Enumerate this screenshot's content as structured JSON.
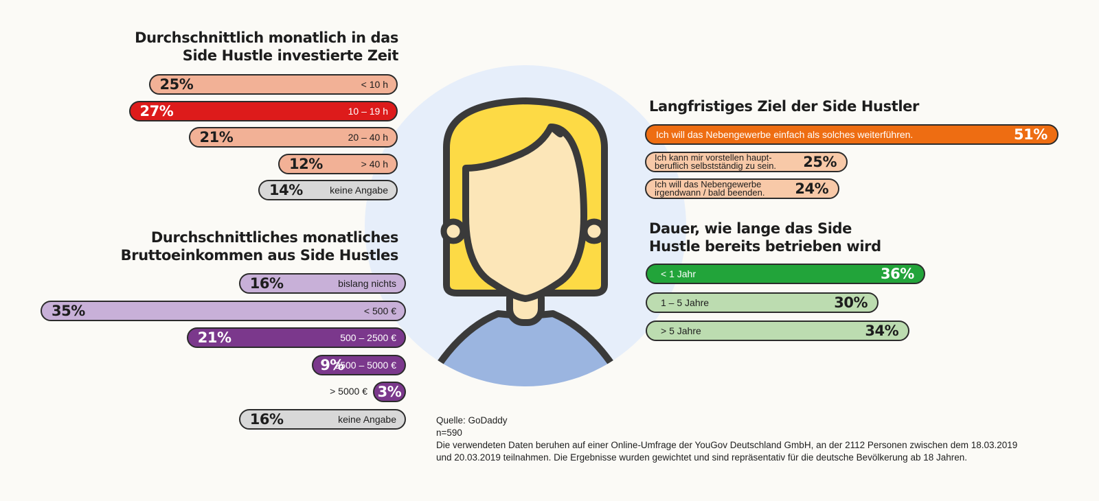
{
  "colors": {
    "background": "#fbfaf6",
    "outline": "#3a3a3a",
    "peach": "#f2b196",
    "red": "#dd1b1b",
    "grey": "#d8d8d8",
    "lavender": "#c8b0d8",
    "purple": "#7b388c",
    "orange": "#ee6d12",
    "light_orange": "#f8c9a8",
    "green": "#22a43a",
    "light_green": "#bcdcb0",
    "circle_bg": "#e6eefa",
    "hair": "#fdda45",
    "skin": "#fce6b8",
    "shirt": "#9bb5e0"
  },
  "chart_data": [
    {
      "type": "bar",
      "title": "Durchschnittlich monatlich in das Side Hustle investierte Zeit",
      "categories": [
        "< 10 h",
        "10 – 19 h",
        "20 – 40 h",
        "> 40 h",
        "keine Angabe"
      ],
      "values": [
        25,
        27,
        21,
        12,
        14
      ],
      "value_labels": [
        "25%",
        "27%",
        "21%",
        "12%",
        "14%"
      ],
      "unit": "%",
      "highlight": "10 – 19 h"
    },
    {
      "type": "bar",
      "title": "Durchschnittliches monatliches Bruttoeinkommen aus Side Hustles",
      "categories": [
        "bislang nichts",
        "< 500 €",
        "500 – 2500 €",
        "2500 – 5000 €",
        "> 5000 €",
        "keine Angabe"
      ],
      "values": [
        16,
        35,
        21,
        9,
        3,
        16
      ],
      "value_labels": [
        "16%",
        "35%",
        "21%",
        "9%",
        "3%",
        "16%"
      ],
      "unit": "%"
    },
    {
      "type": "bar",
      "title": "Langfristiges Ziel der Side Hustler",
      "categories": [
        "Ich will das Nebengewerbe einfach als solches weiterführen.",
        "Ich kann mir vorstellen haupt-\nberuflich selbstständig zu sein.",
        "Ich will das Nebengewerbe\nirgendwann / bald beenden."
      ],
      "values": [
        51,
        25,
        24
      ],
      "value_labels": [
        "51%",
        "25%",
        "24%"
      ],
      "unit": "%"
    },
    {
      "type": "bar",
      "title": "Dauer, wie lange das Side Hustle bereits betrieben wird",
      "categories": [
        "< 1 Jahr",
        "1 – 5 Jahre",
        "> 5 Jahre"
      ],
      "values": [
        36,
        30,
        34
      ],
      "value_labels": [
        "36%",
        "30%",
        "34%"
      ],
      "unit": "%"
    }
  ],
  "source": {
    "line1": "Quelle: GoDaddy",
    "line2": "n=590",
    "line3": "Die verwendeten Daten beruhen auf einer Online-Umfrage der YouGov Deutschland GmbH, an der 2112 Personen zwischen dem 18.03.2019",
    "line4": "und 20.03.2019 teilnahmen. Die Ergebnisse wurden gewichtet und sind repräsentativ für die deutsche Bevölkerung ab 18 Jahren."
  }
}
